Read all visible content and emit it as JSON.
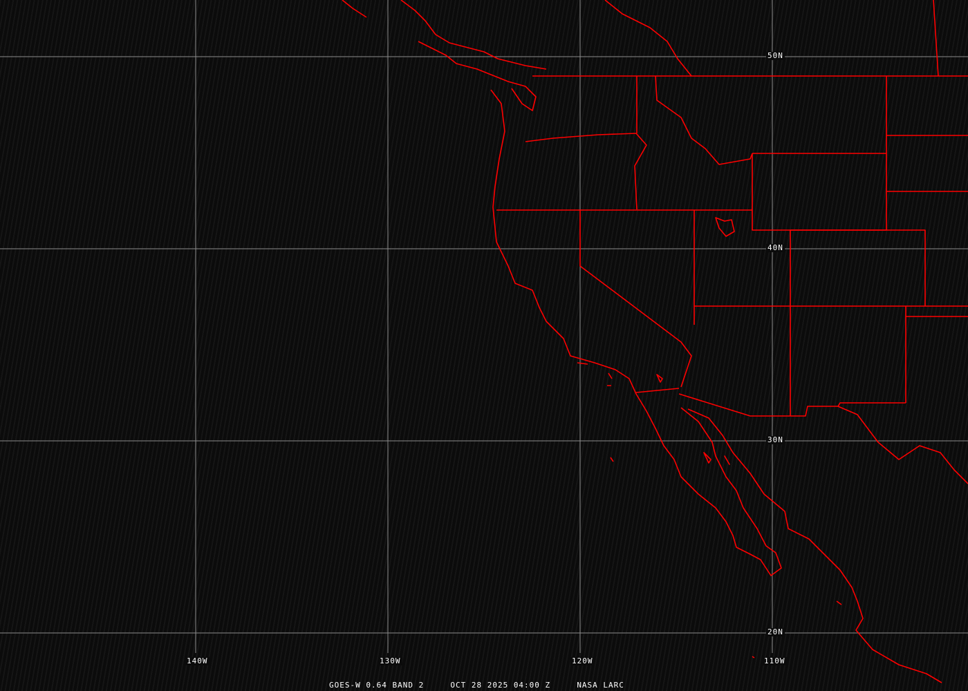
{
  "map": {
    "projection": "equirectangular",
    "grid_color": "#8c8c8c",
    "border_color": "#ff0000",
    "latitude_labels": [
      "50N",
      "40N",
      "30N",
      "20N"
    ],
    "longitude_labels": [
      "140W",
      "130W",
      "120W",
      "110W"
    ]
  },
  "caption": {
    "satellite": "GOES-W 0.64 BAND 2",
    "datetime": "OCT 28 2025 04:00 Z",
    "source": "NASA LARC"
  }
}
